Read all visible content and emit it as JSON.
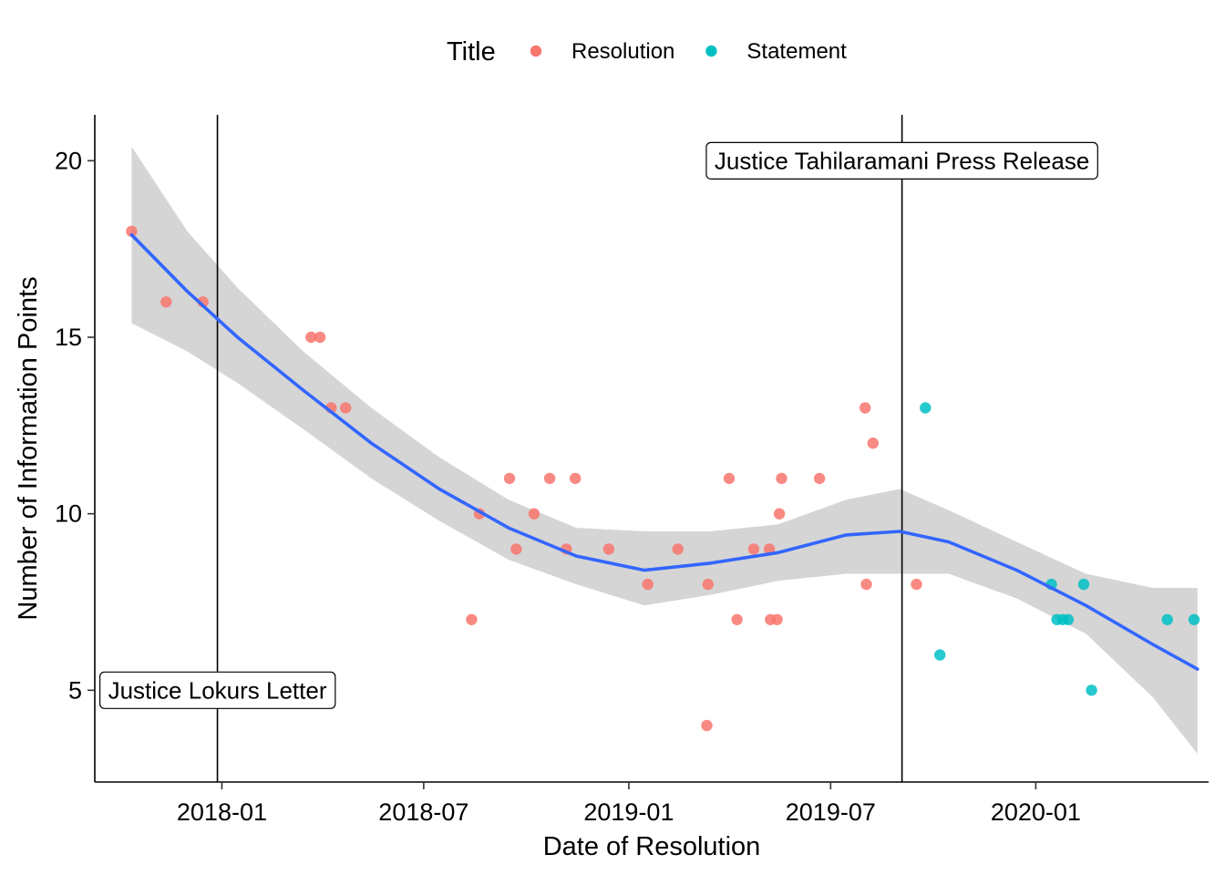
{
  "chart_data": {
    "type": "scatter",
    "xlabel": "Date of Resolution",
    "ylabel": "Number of Information Points",
    "xlim": [
      "2017-09-09",
      "2020-06-04"
    ],
    "ylim": [
      2.4,
      21.3
    ],
    "x_ticks": [
      "2018-01",
      "2018-07",
      "2019-01",
      "2019-07",
      "2020-01"
    ],
    "y_ticks": [
      5,
      10,
      15,
      20
    ],
    "grid": false,
    "legend": {
      "title": "Title",
      "position": "top",
      "entries": [
        {
          "label": "Resolution",
          "color": "#F8766D"
        },
        {
          "label": "Statement",
          "color": "#00BFC4"
        }
      ]
    },
    "vlines": [
      {
        "x": "2017-12-28",
        "label": "Justice Lokurs Letter",
        "label_y": 5
      },
      {
        "x": "2019-09-03",
        "label": "Justice Tahilaramani Press Release",
        "label_y": 20
      }
    ],
    "series": [
      {
        "name": "Resolution",
        "color": "#F8766D",
        "points": [
          {
            "x": "2017-10-12",
            "y": 18
          },
          {
            "x": "2017-11-12",
            "y": 16
          },
          {
            "x": "2017-12-15",
            "y": 16
          },
          {
            "x": "2018-03-22",
            "y": 15
          },
          {
            "x": "2018-03-30",
            "y": 15
          },
          {
            "x": "2018-04-09",
            "y": 13
          },
          {
            "x": "2018-04-22",
            "y": 13
          },
          {
            "x": "2018-08-13",
            "y": 7
          },
          {
            "x": "2018-08-20",
            "y": 10
          },
          {
            "x": "2018-09-16",
            "y": 11
          },
          {
            "x": "2018-09-22",
            "y": 9
          },
          {
            "x": "2018-10-08",
            "y": 10
          },
          {
            "x": "2018-10-22",
            "y": 11
          },
          {
            "x": "2018-10-37",
            "y": 9
          },
          {
            "x": "2018-11-14",
            "y": 11
          },
          {
            "x": "2018-12-14",
            "y": 9
          },
          {
            "x": "2019-01-18",
            "y": 8
          },
          {
            "x": "2019-02-14",
            "y": 9
          },
          {
            "x": "2019-03-13",
            "y": 8
          },
          {
            "x": "2019-03-12",
            "y": 4
          },
          {
            "x": "2019-04-01",
            "y": 11
          },
          {
            "x": "2019-04-08",
            "y": 7
          },
          {
            "x": "2019-04-23",
            "y": 9
          },
          {
            "x": "2019-05-07",
            "y": 9
          },
          {
            "x": "2019-05-08",
            "y": 7
          },
          {
            "x": "2019-05-14",
            "y": 7
          },
          {
            "x": "2019-05-16",
            "y": 10
          },
          {
            "x": "2019-05-18",
            "y": 11
          },
          {
            "x": "2019-06-21",
            "y": 11
          },
          {
            "x": "2019-08-01",
            "y": 13
          },
          {
            "x": "2019-08-02",
            "y": 8
          },
          {
            "x": "2019-08-08",
            "y": 12
          },
          {
            "x": "2019-09-16",
            "y": 8
          }
        ]
      },
      {
        "name": "Statement",
        "color": "#00BFC4",
        "points": [
          {
            "x": "2019-09-24",
            "y": 13
          },
          {
            "x": "2019-10-07",
            "y": 6
          },
          {
            "x": "2020-01-15",
            "y": 8
          },
          {
            "x": "2020-01-20",
            "y": 7
          },
          {
            "x": "2020-01-25",
            "y": 7
          },
          {
            "x": "2020-01-30",
            "y": 7
          },
          {
            "x": "2020-02-13",
            "y": 8
          },
          {
            "x": "2020-02-20",
            "y": 5
          },
          {
            "x": "2020-04-28",
            "y": 7
          },
          {
            "x": "2020-05-22",
            "y": 7
          }
        ]
      }
    ],
    "smooth": {
      "color": "#3366FF",
      "band_color": "#D3D3D3",
      "curve": [
        {
          "x": "2017-10-12",
          "y": 17.9,
          "lo": 15.4,
          "hi": 20.4
        },
        {
          "x": "2017-12-01",
          "y": 16.3,
          "lo": 14.6,
          "hi": 18.0
        },
        {
          "x": "2018-01-15",
          "y": 15.0,
          "lo": 13.7,
          "hi": 16.4
        },
        {
          "x": "2018-03-15",
          "y": 13.5,
          "lo": 12.4,
          "hi": 14.6
        },
        {
          "x": "2018-05-15",
          "y": 12.0,
          "lo": 11.0,
          "hi": 13.0
        },
        {
          "x": "2018-07-15",
          "y": 10.7,
          "lo": 9.8,
          "hi": 11.6
        },
        {
          "x": "2018-09-15",
          "y": 9.6,
          "lo": 8.7,
          "hi": 10.4
        },
        {
          "x": "2018-11-15",
          "y": 8.8,
          "lo": 8.0,
          "hi": 9.6
        },
        {
          "x": "2019-01-15",
          "y": 8.4,
          "lo": 7.4,
          "hi": 9.5
        },
        {
          "x": "2019-03-15",
          "y": 8.6,
          "lo": 7.7,
          "hi": 9.5
        },
        {
          "x": "2019-05-15",
          "y": 8.9,
          "lo": 8.1,
          "hi": 9.7
        },
        {
          "x": "2019-07-15",
          "y": 9.4,
          "lo": 8.3,
          "hi": 10.4
        },
        {
          "x": "2019-09-01",
          "y": 9.5,
          "lo": 8.3,
          "hi": 10.7
        },
        {
          "x": "2019-10-15",
          "y": 9.2,
          "lo": 8.3,
          "hi": 10.1
        },
        {
          "x": "2019-12-15",
          "y": 8.4,
          "lo": 7.6,
          "hi": 9.2
        },
        {
          "x": "2020-02-15",
          "y": 7.4,
          "lo": 6.6,
          "hi": 8.3
        },
        {
          "x": "2020-04-15",
          "y": 6.3,
          "lo": 4.8,
          "hi": 7.9
        },
        {
          "x": "2020-05-25",
          "y": 5.6,
          "lo": 3.2,
          "hi": 7.9
        }
      ]
    }
  }
}
